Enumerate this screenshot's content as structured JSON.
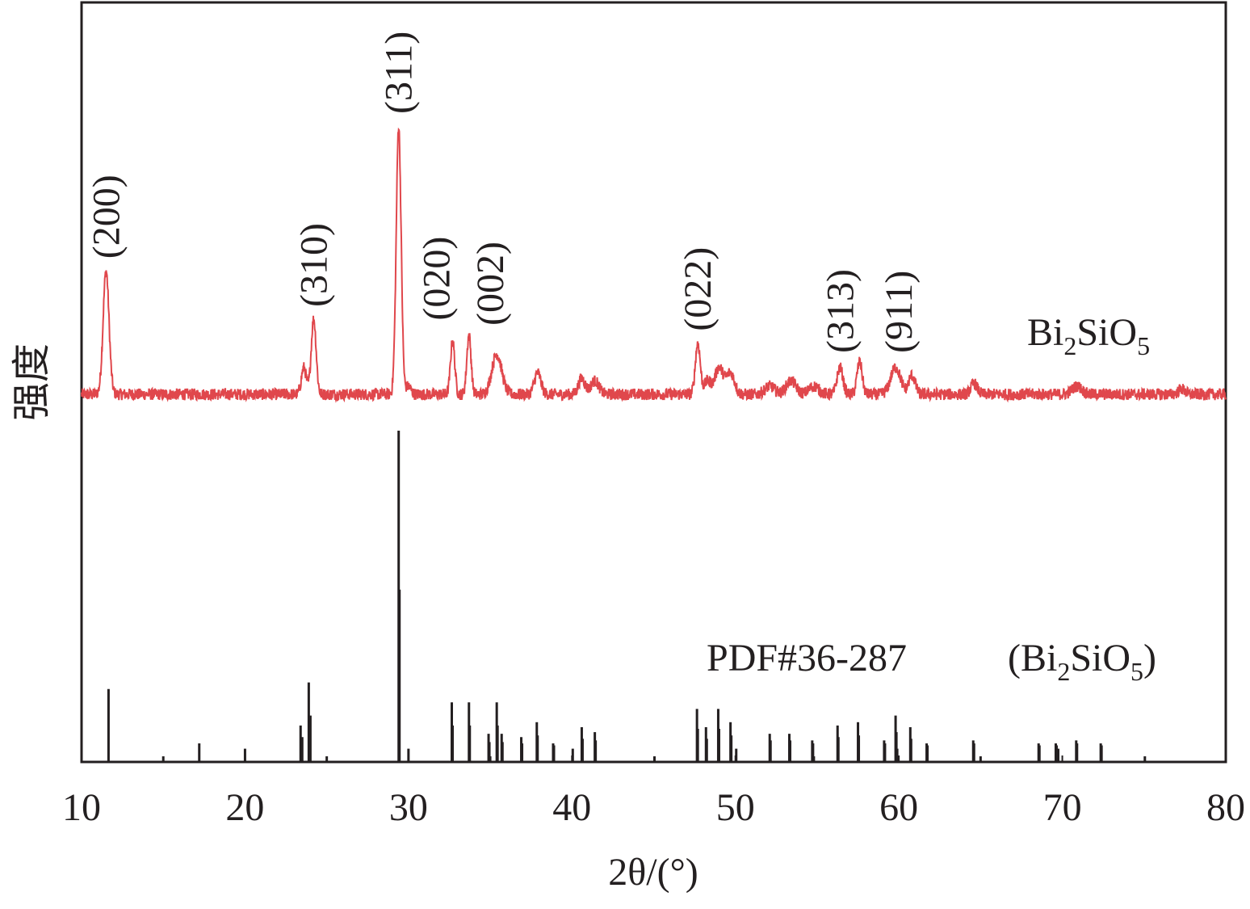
{
  "chart_data": {
    "type": "line",
    "title": "",
    "xlabel": "2θ/(°)",
    "ylabel": "强度",
    "xlim": [
      10,
      80
    ],
    "xticks": [
      "10",
      "20",
      "30",
      "40",
      "50",
      "60",
      "70",
      "80"
    ],
    "grid": false,
    "colors": {
      "measured": "#e0474c",
      "reference": "#231f20",
      "axis": "#231f20"
    },
    "series": [
      {
        "name": "Bi2SiO5",
        "kind": "measured-pattern",
        "baseline_au": 0,
        "noise_au": 2.2,
        "peaks": [
          {
            "x": 11.5,
            "y": 46,
            "w": 0.18
          },
          {
            "x": 23.6,
            "y": 10,
            "w": 0.15
          },
          {
            "x": 24.2,
            "y": 28,
            "w": 0.15
          },
          {
            "x": 29.4,
            "y": 100,
            "w": 0.15
          },
          {
            "x": 30.0,
            "y": 3,
            "w": 0.15
          },
          {
            "x": 32.7,
            "y": 20,
            "w": 0.13
          },
          {
            "x": 33.7,
            "y": 22,
            "w": 0.13
          },
          {
            "x": 35.4,
            "y": 15,
            "w": 0.3
          },
          {
            "x": 37.9,
            "y": 8,
            "w": 0.2
          },
          {
            "x": 40.6,
            "y": 6,
            "w": 0.2
          },
          {
            "x": 41.4,
            "y": 5,
            "w": 0.25
          },
          {
            "x": 47.7,
            "y": 19,
            "w": 0.15
          },
          {
            "x": 48.3,
            "y": 5,
            "w": 0.2
          },
          {
            "x": 49.0,
            "y": 10,
            "w": 0.25
          },
          {
            "x": 49.7,
            "y": 8,
            "w": 0.25
          },
          {
            "x": 52.1,
            "y": 3,
            "w": 0.3
          },
          {
            "x": 53.4,
            "y": 5,
            "w": 0.3
          },
          {
            "x": 54.8,
            "y": 3,
            "w": 0.3
          },
          {
            "x": 56.4,
            "y": 10,
            "w": 0.18
          },
          {
            "x": 57.6,
            "y": 12,
            "w": 0.16
          },
          {
            "x": 59.8,
            "y": 10,
            "w": 0.3
          },
          {
            "x": 60.8,
            "y": 7,
            "w": 0.2
          },
          {
            "x": 64.6,
            "y": 4,
            "w": 0.2
          },
          {
            "x": 70.9,
            "y": 3,
            "w": 0.3
          },
          {
            "x": 77.3,
            "y": 2,
            "w": 0.2
          }
        ]
      },
      {
        "name": "PDF#36-287 (Bi2SiO5)",
        "kind": "reference-sticks",
        "x": [
          11.65,
          15.0,
          17.2,
          20.0,
          23.4,
          23.5,
          23.9,
          24.0,
          25.0,
          29.4,
          29.45,
          30.0,
          32.65,
          32.7,
          33.7,
          33.75,
          34.9,
          34.95,
          35.0,
          35.4,
          35.45,
          35.7,
          35.75,
          36.9,
          36.95,
          37.85,
          37.9,
          38.85,
          38.9,
          40.05,
          40.6,
          40.65,
          41.4,
          41.45,
          45.05,
          47.65,
          47.7,
          48.2,
          48.25,
          48.95,
          49.0,
          49.7,
          49.75,
          50.05,
          52.1,
          52.15,
          53.3,
          53.35,
          54.7,
          54.75,
          54.8,
          56.25,
          56.3,
          57.5,
          57.55,
          59.1,
          59.15,
          59.8,
          59.85,
          59.9,
          60.7,
          60.75,
          61.7,
          61.75,
          64.55,
          64.6,
          65.0,
          68.55,
          68.6,
          69.6,
          69.65,
          69.75,
          70.85,
          70.9,
          72.35,
          72.4,
          75.05
        ],
        "y": [
          22,
          1.7,
          5.6,
          4,
          11,
          7.5,
          24,
          14,
          1.7,
          100,
          52,
          4,
          18,
          11,
          18,
          11,
          8.5,
          6,
          1.7,
          18,
          11,
          8.5,
          6,
          7.5,
          5.6,
          12,
          8,
          5.6,
          5,
          4,
          10.5,
          7,
          9,
          6.5,
          1.7,
          16,
          10,
          10.5,
          7,
          16,
          10,
          12,
          8,
          4,
          8.5,
          6.5,
          8.5,
          6.5,
          6.5,
          5.6,
          1.7,
          11,
          7.5,
          12,
          8,
          6.5,
          5.6,
          14,
          9,
          4,
          10.5,
          7,
          5.6,
          5,
          6.5,
          5.6,
          1.7,
          5.6,
          5,
          5.6,
          5,
          4,
          6.5,
          5.6,
          5.6,
          5,
          1.7
        ]
      }
    ],
    "annotations": [
      {
        "text": "(200)",
        "x": 11.5
      },
      {
        "text": "(310)",
        "x": 24.2
      },
      {
        "text": "(311)",
        "x": 29.4
      },
      {
        "text": "(020)",
        "x": 32.7
      },
      {
        "text": "(002)",
        "x": 33.7
      },
      {
        "text": "(022)",
        "x": 47.7
      },
      {
        "text": "(313)",
        "x": 56.4
      },
      {
        "text": "(911)",
        "x": 59.8
      }
    ],
    "legend": {
      "measured_label": "Bi2SiO5",
      "reference_id": "PDF#36-287",
      "reference_phase": "(Bi2SiO5)"
    }
  }
}
